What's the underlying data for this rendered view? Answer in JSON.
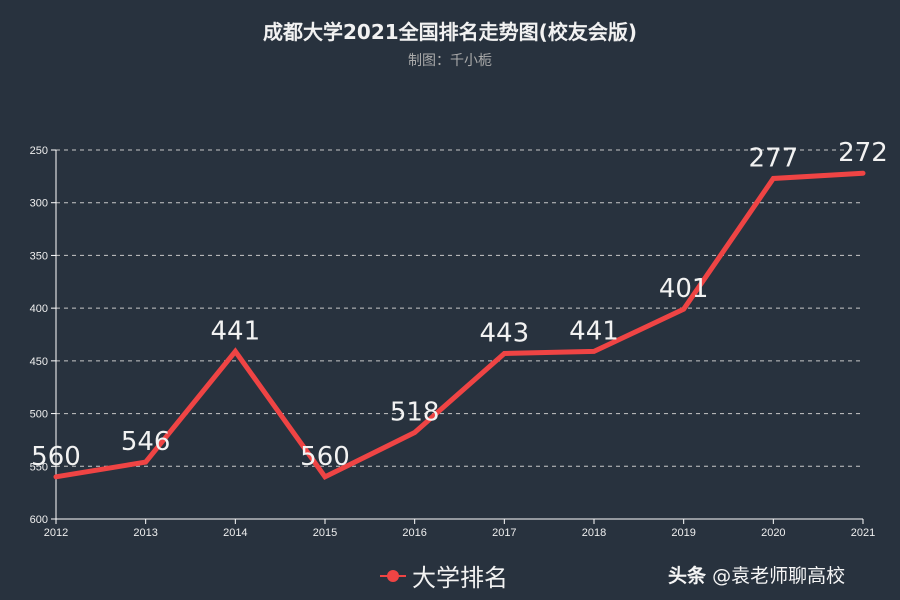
{
  "header": {
    "title": "成都大学2021全国排名走势图(校友会版)",
    "subtitle": "制图：千小栀"
  },
  "legend": {
    "label": "大学排名",
    "color": "#ef4444"
  },
  "watermark": {
    "brand": "头条",
    "handle": "@袁老师聊高校"
  },
  "colors": {
    "background": "#28323e",
    "line": "#ef4444",
    "grid": "#cccccc",
    "axis": "#ffffff"
  },
  "chart_data": {
    "type": "line",
    "title": "成都大学2021全国排名走势图(校友会版)",
    "subtitle": "制图：千小栀",
    "xlabel": "",
    "ylabel": "",
    "categories": [
      "2012",
      "2013",
      "2014",
      "2015",
      "2016",
      "2017",
      "2018",
      "2019",
      "2020",
      "2021"
    ],
    "series": [
      {
        "name": "大学排名",
        "values": [
          560,
          546,
          441,
          560,
          518,
          443,
          441,
          401,
          277,
          272
        ]
      }
    ],
    "ylim": [
      250,
      600
    ],
    "y_inverted": true,
    "yticks": [
      250,
      300,
      350,
      400,
      450,
      500,
      550,
      600
    ],
    "grid": true,
    "legend_position": "bottom"
  }
}
